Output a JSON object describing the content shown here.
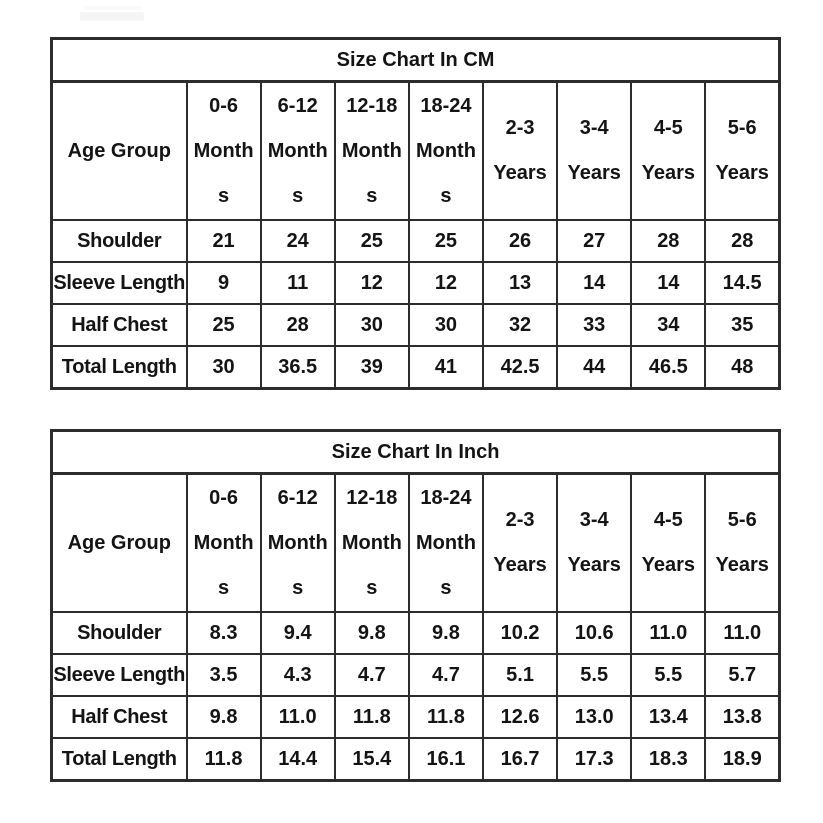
{
  "page": {
    "background_color": "#ffffff",
    "text_color": "#141414",
    "border_color": "#2c2c2c"
  },
  "tables": [
    {
      "title": "Size Chart In CM",
      "header": {
        "label": "Age Group",
        "columns": [
          {
            "lines": [
              "0-6",
              "Month",
              "s"
            ]
          },
          {
            "lines": [
              "6-12",
              "Month",
              "s"
            ]
          },
          {
            "lines": [
              "12-18",
              "Month",
              "s"
            ]
          },
          {
            "lines": [
              "18-24",
              "Month",
              "s"
            ]
          },
          {
            "lines": [
              "2-3",
              "Years"
            ]
          },
          {
            "lines": [
              "3-4",
              "Years"
            ]
          },
          {
            "lines": [
              "4-5",
              "Years"
            ]
          },
          {
            "lines": [
              "5-6",
              "Years"
            ]
          }
        ]
      },
      "rows": [
        {
          "label": "Shoulder",
          "values": [
            "21",
            "24",
            "25",
            "25",
            "26",
            "27",
            "28",
            "28"
          ]
        },
        {
          "label": "Sleeve Length",
          "values": [
            "9",
            "11",
            "12",
            "12",
            "13",
            "14",
            "14",
            "14.5"
          ]
        },
        {
          "label": "Half Chest",
          "values": [
            "25",
            "28",
            "30",
            "30",
            "32",
            "33",
            "34",
            "35"
          ]
        },
        {
          "label": "Total Length",
          "values": [
            "30",
            "36.5",
            "39",
            "41",
            "42.5",
            "44",
            "46.5",
            "48"
          ]
        }
      ]
    },
    {
      "title": "Size Chart In Inch",
      "header": {
        "label": "Age Group",
        "columns": [
          {
            "lines": [
              "0-6",
              "Month",
              "s"
            ]
          },
          {
            "lines": [
              "6-12",
              "Month",
              "s"
            ]
          },
          {
            "lines": [
              "12-18",
              "Month",
              "s"
            ]
          },
          {
            "lines": [
              "18-24",
              "Month",
              "s"
            ]
          },
          {
            "lines": [
              "2-3",
              "Years"
            ]
          },
          {
            "lines": [
              "3-4",
              "Years"
            ]
          },
          {
            "lines": [
              "4-5",
              "Years"
            ]
          },
          {
            "lines": [
              "5-6",
              "Years"
            ]
          }
        ]
      },
      "rows": [
        {
          "label": "Shoulder",
          "values": [
            "8.3",
            "9.4",
            "9.8",
            "9.8",
            "10.2",
            "10.6",
            "11.0",
            "11.0"
          ]
        },
        {
          "label": "Sleeve Length",
          "values": [
            "3.5",
            "4.3",
            "4.7",
            "4.7",
            "5.1",
            "5.5",
            "5.5",
            "5.7"
          ]
        },
        {
          "label": "Half Chest",
          "values": [
            "9.8",
            "11.0",
            "11.8",
            "11.8",
            "12.6",
            "13.0",
            "13.4",
            "13.8"
          ]
        },
        {
          "label": "Total Length",
          "values": [
            "11.8",
            "14.4",
            "15.4",
            "16.1",
            "16.7",
            "17.3",
            "18.3",
            "18.9"
          ]
        }
      ]
    }
  ]
}
